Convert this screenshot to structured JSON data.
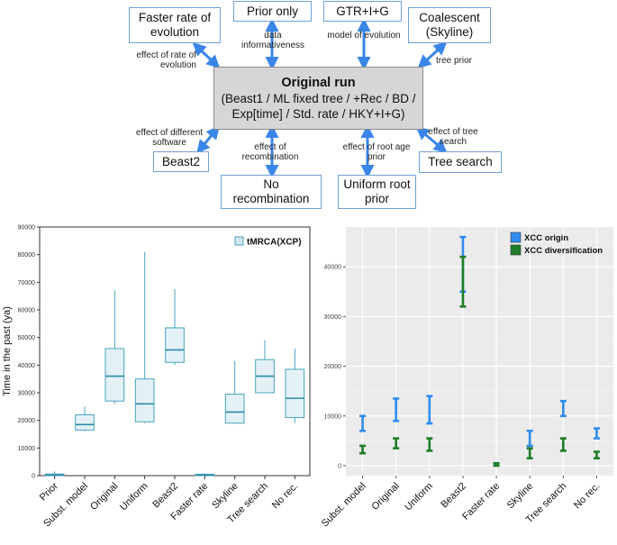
{
  "diagram": {
    "center": {
      "title": "Original run",
      "body": "(Beast1 / ML fixed tree / +Rec / BD / Exp[time] / Std. rate / HKY+I+G)"
    },
    "nodes": {
      "faster_rate": "Faster rate of evolution",
      "prior_only": "Prior only",
      "gtr": "GTR+I+G",
      "coalescent": "Coalescent (Skyline)",
      "beast2": "Beast2",
      "no_recombination": "No recombination",
      "uniform_root_prior": "Uniform root prior",
      "tree_search": "Tree search"
    },
    "edges": {
      "effect_rate": "effect of rate of evolution",
      "data_info": "data informativeness",
      "model_evolution": "model of evolution",
      "tree_prior": "tree prior",
      "different_software": "effect of different software",
      "effect_recombination": "effect of recombination",
      "effect_root": "effect of root age prior",
      "effect_tree_search": "effect of tree search"
    }
  },
  "chart_data": [
    {
      "type": "box",
      "legend": "tMRCA(XCP)",
      "ylabel": "Time in the past (ya)",
      "ylim": [
        0,
        90000
      ],
      "yticks": [
        "0",
        "10000",
        "20000",
        "30000",
        "40000",
        "50000",
        "60000",
        "70000",
        "80000",
        "90000"
      ],
      "categories": [
        "Prior",
        "Subst. model",
        "Original",
        "Uniform",
        "Beast2",
        "Faster rate",
        "Skyline",
        "Tree search",
        "No rec."
      ],
      "boxes": [
        {
          "min": 0,
          "q1": 0,
          "median": 200,
          "q3": 600,
          "max": 1500
        },
        {
          "min": 16000,
          "q1": 16500,
          "median": 18500,
          "q3": 22000,
          "max": 25000
        },
        {
          "min": 26000,
          "q1": 27000,
          "median": 36000,
          "q3": 46000,
          "max": 67000
        },
        {
          "min": 19000,
          "q1": 19500,
          "median": 26000,
          "q3": 35000,
          "max": 81000
        },
        {
          "min": 40000,
          "q1": 41000,
          "median": 45500,
          "q3": 53500,
          "max": 67500
        },
        {
          "min": 0,
          "q1": 0,
          "median": 200,
          "q3": 500,
          "max": 800
        },
        {
          "min": 19000,
          "q1": 19000,
          "median": 23000,
          "q3": 29500,
          "max": 41500
        },
        {
          "min": 30000,
          "q1": 30000,
          "median": 36000,
          "q3": 42000,
          "max": 49000
        },
        {
          "min": 19000,
          "q1": 21000,
          "median": 28000,
          "q3": 38500,
          "max": 46000
        }
      ]
    },
    {
      "type": "errorbar",
      "ylim": [
        -2000,
        48000
      ],
      "yticks": [
        "0",
        "10000",
        "20000",
        "30000",
        "40000"
      ],
      "categories": [
        "Subst. model",
        "Original",
        "Uniform",
        "Beast2",
        "Faster rate",
        "Skyline",
        "Tree search",
        "No rec."
      ],
      "series": [
        {
          "name": "XCC origin",
          "color": "#2f8df0",
          "ranges": [
            [
              7000,
              10000
            ],
            [
              9000,
              13500
            ],
            [
              8500,
              14000
            ],
            [
              35000,
              46000
            ],
            null,
            [
              4000,
              7000
            ],
            [
              10000,
              13000
            ],
            [
              5500,
              7500
            ]
          ]
        },
        {
          "name": "XCC diversification",
          "color": "#1e7d28",
          "ranges": [
            [
              2500,
              4000
            ],
            [
              3500,
              5500
            ],
            [
              3000,
              5500
            ],
            [
              32000,
              42000
            ],
            [
              0,
              500
            ],
            [
              1500,
              3500
            ],
            [
              3000,
              5500
            ],
            [
              1500,
              2800
            ]
          ]
        }
      ]
    }
  ]
}
